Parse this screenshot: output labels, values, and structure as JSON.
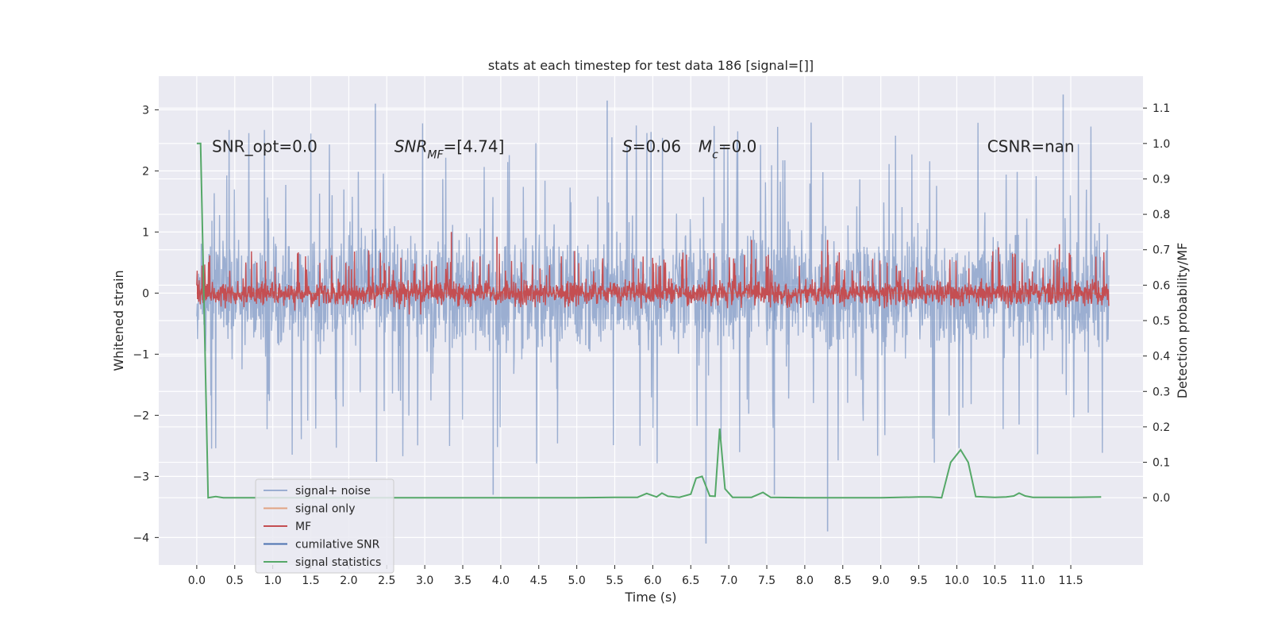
{
  "chart_data": {
    "type": "line",
    "title": "stats at each timestep for test data 186 [signal=[]]",
    "xlabel": "Time (s)",
    "ylabel": "Whitened strain",
    "y2label": "Detection probability/MF",
    "xlim": [
      -0.5,
      12.45
    ],
    "ylim": [
      -4.45,
      3.55
    ],
    "y2lim": [
      -0.19,
      1.19
    ],
    "x_ticks": [
      0.0,
      0.5,
      1.0,
      1.5,
      2.0,
      2.5,
      3.0,
      3.5,
      4.0,
      4.5,
      5.0,
      5.5,
      6.0,
      6.5,
      7.0,
      7.5,
      8.0,
      8.5,
      9.0,
      9.5,
      10.0,
      10.5,
      11.0,
      11.5
    ],
    "x_tick_labels": [
      "0.0",
      "0.5",
      "1.0",
      "1.5",
      "2.0",
      "2.5",
      "3.0",
      "3.5",
      "4.0",
      "4.5",
      "5.0",
      "5.5",
      "6.0",
      "6.5",
      "7.0",
      "7.5",
      "8.0",
      "8.5",
      "9.0",
      "9.5",
      "10.0",
      "10.5",
      "11.0",
      "11.5"
    ],
    "y_ticks": [
      -4,
      -3,
      -2,
      -1,
      0,
      1,
      2,
      3
    ],
    "y_tick_labels": [
      "−4",
      "−3",
      "−2",
      "−1",
      "0",
      "1",
      "2",
      "3"
    ],
    "y2_ticks": [
      0.0,
      0.1,
      0.2,
      0.3,
      0.4,
      0.5,
      0.6,
      0.7,
      0.8,
      0.9,
      1.0,
      1.1
    ],
    "y2_tick_labels": [
      "0.0",
      "0.1",
      "0.2",
      "0.3",
      "0.4",
      "0.5",
      "0.6",
      "0.7",
      "0.8",
      "0.9",
      "1.0",
      "1.1"
    ],
    "grid": true,
    "legend_position": "lower-left",
    "annotations": [
      {
        "text": "SNR_opt=0.0",
        "x": 0.2,
        "y": 2.4
      },
      {
        "text": "SNR_MF=[4.74]",
        "x": 2.6,
        "y": 2.4
      },
      {
        "text": "S=0.06",
        "x": 5.6,
        "y": 2.4
      },
      {
        "text": "M_c=0.0",
        "x": 6.6,
        "y": 2.4
      },
      {
        "text": "CSNR=nan",
        "x": 10.4,
        "y": 2.4
      }
    ],
    "series": [
      {
        "name": "signal+ noise",
        "color": "#4c72b0",
        "opacity": 0.5,
        "axis": "left",
        "x_range": [
          0.0,
          12.0
        ],
        "envelope_max": 3.2,
        "envelope_min": -4.1,
        "typical_band": [
          -1.3,
          1.3
        ],
        "notable_spikes": [
          [
            2.35,
            3.1
          ],
          [
            5.4,
            3.15
          ],
          [
            11.4,
            3.25
          ],
          [
            6.7,
            -4.1
          ],
          [
            8.3,
            -3.9
          ],
          [
            3.9,
            -3.3
          ],
          [
            7.6,
            -3.3
          ]
        ]
      },
      {
        "name": "signal only",
        "color": "#dd8452",
        "opacity": 0.7,
        "axis": "left",
        "x_range": [
          0.0,
          12.0
        ],
        "values_constant": 0.0
      },
      {
        "name": "MF",
        "color": "#c44e52",
        "opacity": 1.0,
        "axis": "left",
        "x_range": [
          0.0,
          12.0
        ],
        "typical_band": [
          -0.35,
          0.35
        ],
        "notable_spikes": [
          [
            3.35,
            1.0
          ],
          [
            3.95,
            0.92
          ],
          [
            7.3,
            0.87
          ],
          [
            8.3,
            0.87
          ],
          [
            10.55,
            0.75
          ],
          [
            11.35,
            0.8
          ]
        ]
      },
      {
        "name": "cumilative SNR",
        "color": "#4c72b0",
        "opacity": 1.0,
        "axis": "right",
        "values": []
      },
      {
        "name": "signal statistics",
        "color": "#55a868",
        "opacity": 1.0,
        "axis": "right",
        "x": [
          0.0,
          0.05,
          0.1,
          0.15,
          0.25,
          0.35,
          0.5,
          1.0,
          2.0,
          3.0,
          4.0,
          5.0,
          5.5,
          5.8,
          5.92,
          6.05,
          6.12,
          6.2,
          6.35,
          6.5,
          6.57,
          6.65,
          6.75,
          6.82,
          6.88,
          6.95,
          7.05,
          7.3,
          7.45,
          7.55,
          8.0,
          9.0,
          9.5,
          9.65,
          9.8,
          9.92,
          10.05,
          10.15,
          10.25,
          10.5,
          10.65,
          10.75,
          10.82,
          10.9,
          11.0,
          11.5,
          11.9
        ],
        "values": [
          1.0,
          1.0,
          0.5,
          0.0,
          0.003,
          0.0,
          0.0,
          0.0,
          0.0,
          0.0,
          0.0,
          0.0,
          0.001,
          0.001,
          0.012,
          0.002,
          0.013,
          0.004,
          0.001,
          0.01,
          0.055,
          0.06,
          0.005,
          0.004,
          0.195,
          0.025,
          0.001,
          0.001,
          0.015,
          0.001,
          0.0,
          0.0,
          0.002,
          0.002,
          0.0,
          0.1,
          0.135,
          0.1,
          0.003,
          0.001,
          0.002,
          0.005,
          0.013,
          0.005,
          0.001,
          0.001,
          0.002
        ]
      }
    ]
  }
}
